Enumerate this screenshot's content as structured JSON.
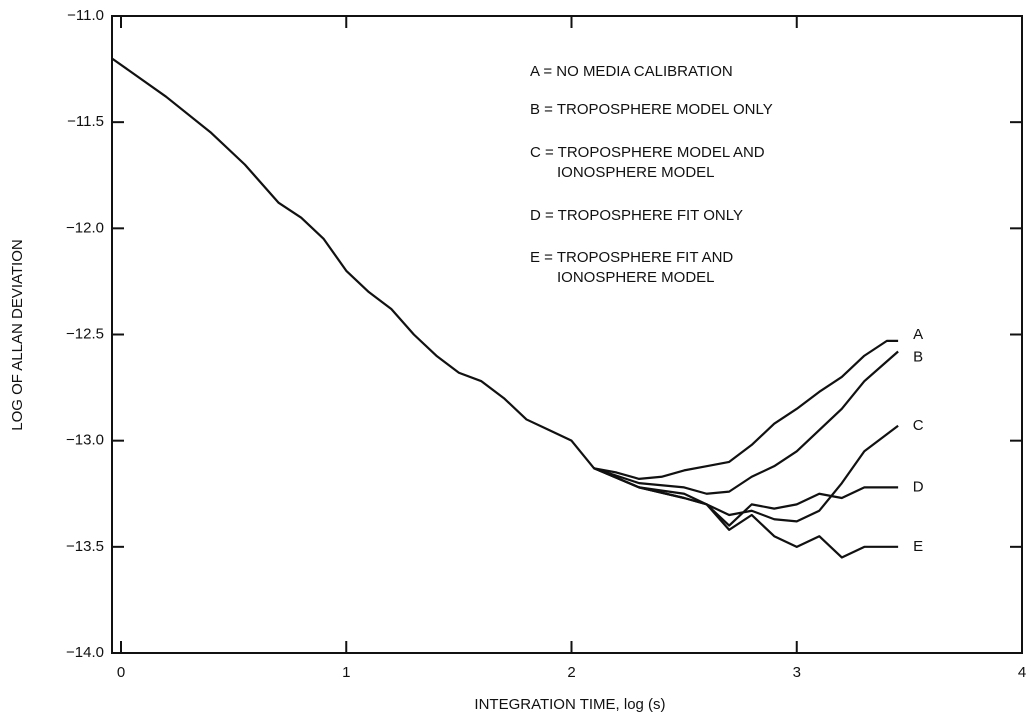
{
  "chart_data": {
    "type": "line",
    "xlabel": "INTEGRATION TIME, log (s)",
    "ylabel": "LOG OF ALLAN DEVIATION",
    "xlim": [
      -0.04,
      4
    ],
    "ylim": [
      -14,
      -11
    ],
    "xticks": [
      0,
      1,
      2,
      3,
      4
    ],
    "yticks": [
      {
        "value": -11,
        "label": "−11.0"
      },
      {
        "value": -11.5,
        "label": "−11.5"
      },
      {
        "value": -12,
        "label": "−12.0"
      },
      {
        "value": -12.5,
        "label": "−12.5"
      },
      {
        "value": -13,
        "label": "−13.0"
      },
      {
        "value": -13.5,
        "label": "−13.5"
      },
      {
        "value": -14,
        "label": "−14.0"
      }
    ],
    "annotations": [
      "A = NO MEDIA CALIBRATION",
      "B = TROPOSPHERE MODEL ONLY",
      "C = TROPOSPHERE MODEL AND",
      "IONOSPHERE MODEL",
      "D = TROPOSPHERE FIT ONLY",
      "E = TROPOSPHERE FIT AND",
      "IONOSPHERE MODEL"
    ],
    "series": [
      {
        "name": "A",
        "color": "#111111",
        "x": [
          -0.04,
          0.2,
          0.4,
          0.55,
          0.7,
          0.8,
          0.9,
          1.0,
          1.1,
          1.2,
          1.3,
          1.4,
          1.5,
          1.6,
          1.7,
          1.8,
          1.9,
          2.0,
          2.1,
          2.2,
          2.3,
          2.4,
          2.5,
          2.6,
          2.7,
          2.8,
          2.9,
          3.0,
          3.1,
          3.2,
          3.3,
          3.4,
          3.45
        ],
        "values": [
          -11.2,
          -11.38,
          -11.55,
          -11.7,
          -11.88,
          -11.95,
          -12.05,
          -12.2,
          -12.3,
          -12.38,
          -12.5,
          -12.6,
          -12.68,
          -12.72,
          -12.8,
          -12.9,
          -12.95,
          -13.0,
          -13.13,
          -13.15,
          -13.18,
          -13.17,
          -13.14,
          -13.12,
          -13.1,
          -13.02,
          -12.92,
          -12.85,
          -12.77,
          -12.7,
          -12.6,
          -12.53,
          -12.53
        ]
      },
      {
        "name": "B",
        "color": "#111111",
        "x": [
          2.1,
          2.3,
          2.5,
          2.6,
          2.7,
          2.8,
          2.9,
          3.0,
          3.1,
          3.2,
          3.3,
          3.45
        ],
        "values": [
          -13.13,
          -13.2,
          -13.22,
          -13.25,
          -13.24,
          -13.17,
          -13.12,
          -13.05,
          -12.95,
          -12.85,
          -12.72,
          -12.58
        ]
      },
      {
        "name": "C",
        "color": "#111111",
        "x": [
          2.1,
          2.3,
          2.5,
          2.6,
          2.7,
          2.8,
          2.9,
          3.0,
          3.1,
          3.2,
          3.3,
          3.45
        ],
        "values": [
          -13.13,
          -13.22,
          -13.25,
          -13.3,
          -13.35,
          -13.33,
          -13.37,
          -13.38,
          -13.33,
          -13.2,
          -13.05,
          -12.93
        ]
      },
      {
        "name": "D",
        "color": "#111111",
        "x": [
          2.1,
          2.3,
          2.5,
          2.6,
          2.7,
          2.8,
          2.9,
          3.0,
          3.1,
          3.2,
          3.3,
          3.45
        ],
        "values": [
          -13.13,
          -13.22,
          -13.27,
          -13.3,
          -13.4,
          -13.3,
          -13.32,
          -13.3,
          -13.25,
          -13.27,
          -13.22,
          -13.22
        ]
      },
      {
        "name": "E",
        "color": "#111111",
        "x": [
          2.1,
          2.3,
          2.5,
          2.6,
          2.7,
          2.8,
          2.9,
          3.0,
          3.1,
          3.2,
          3.3,
          3.45
        ],
        "values": [
          -13.13,
          -13.22,
          -13.27,
          -13.3,
          -13.42,
          -13.35,
          -13.45,
          -13.5,
          -13.45,
          -13.55,
          -13.5,
          -13.5
        ]
      }
    ]
  }
}
